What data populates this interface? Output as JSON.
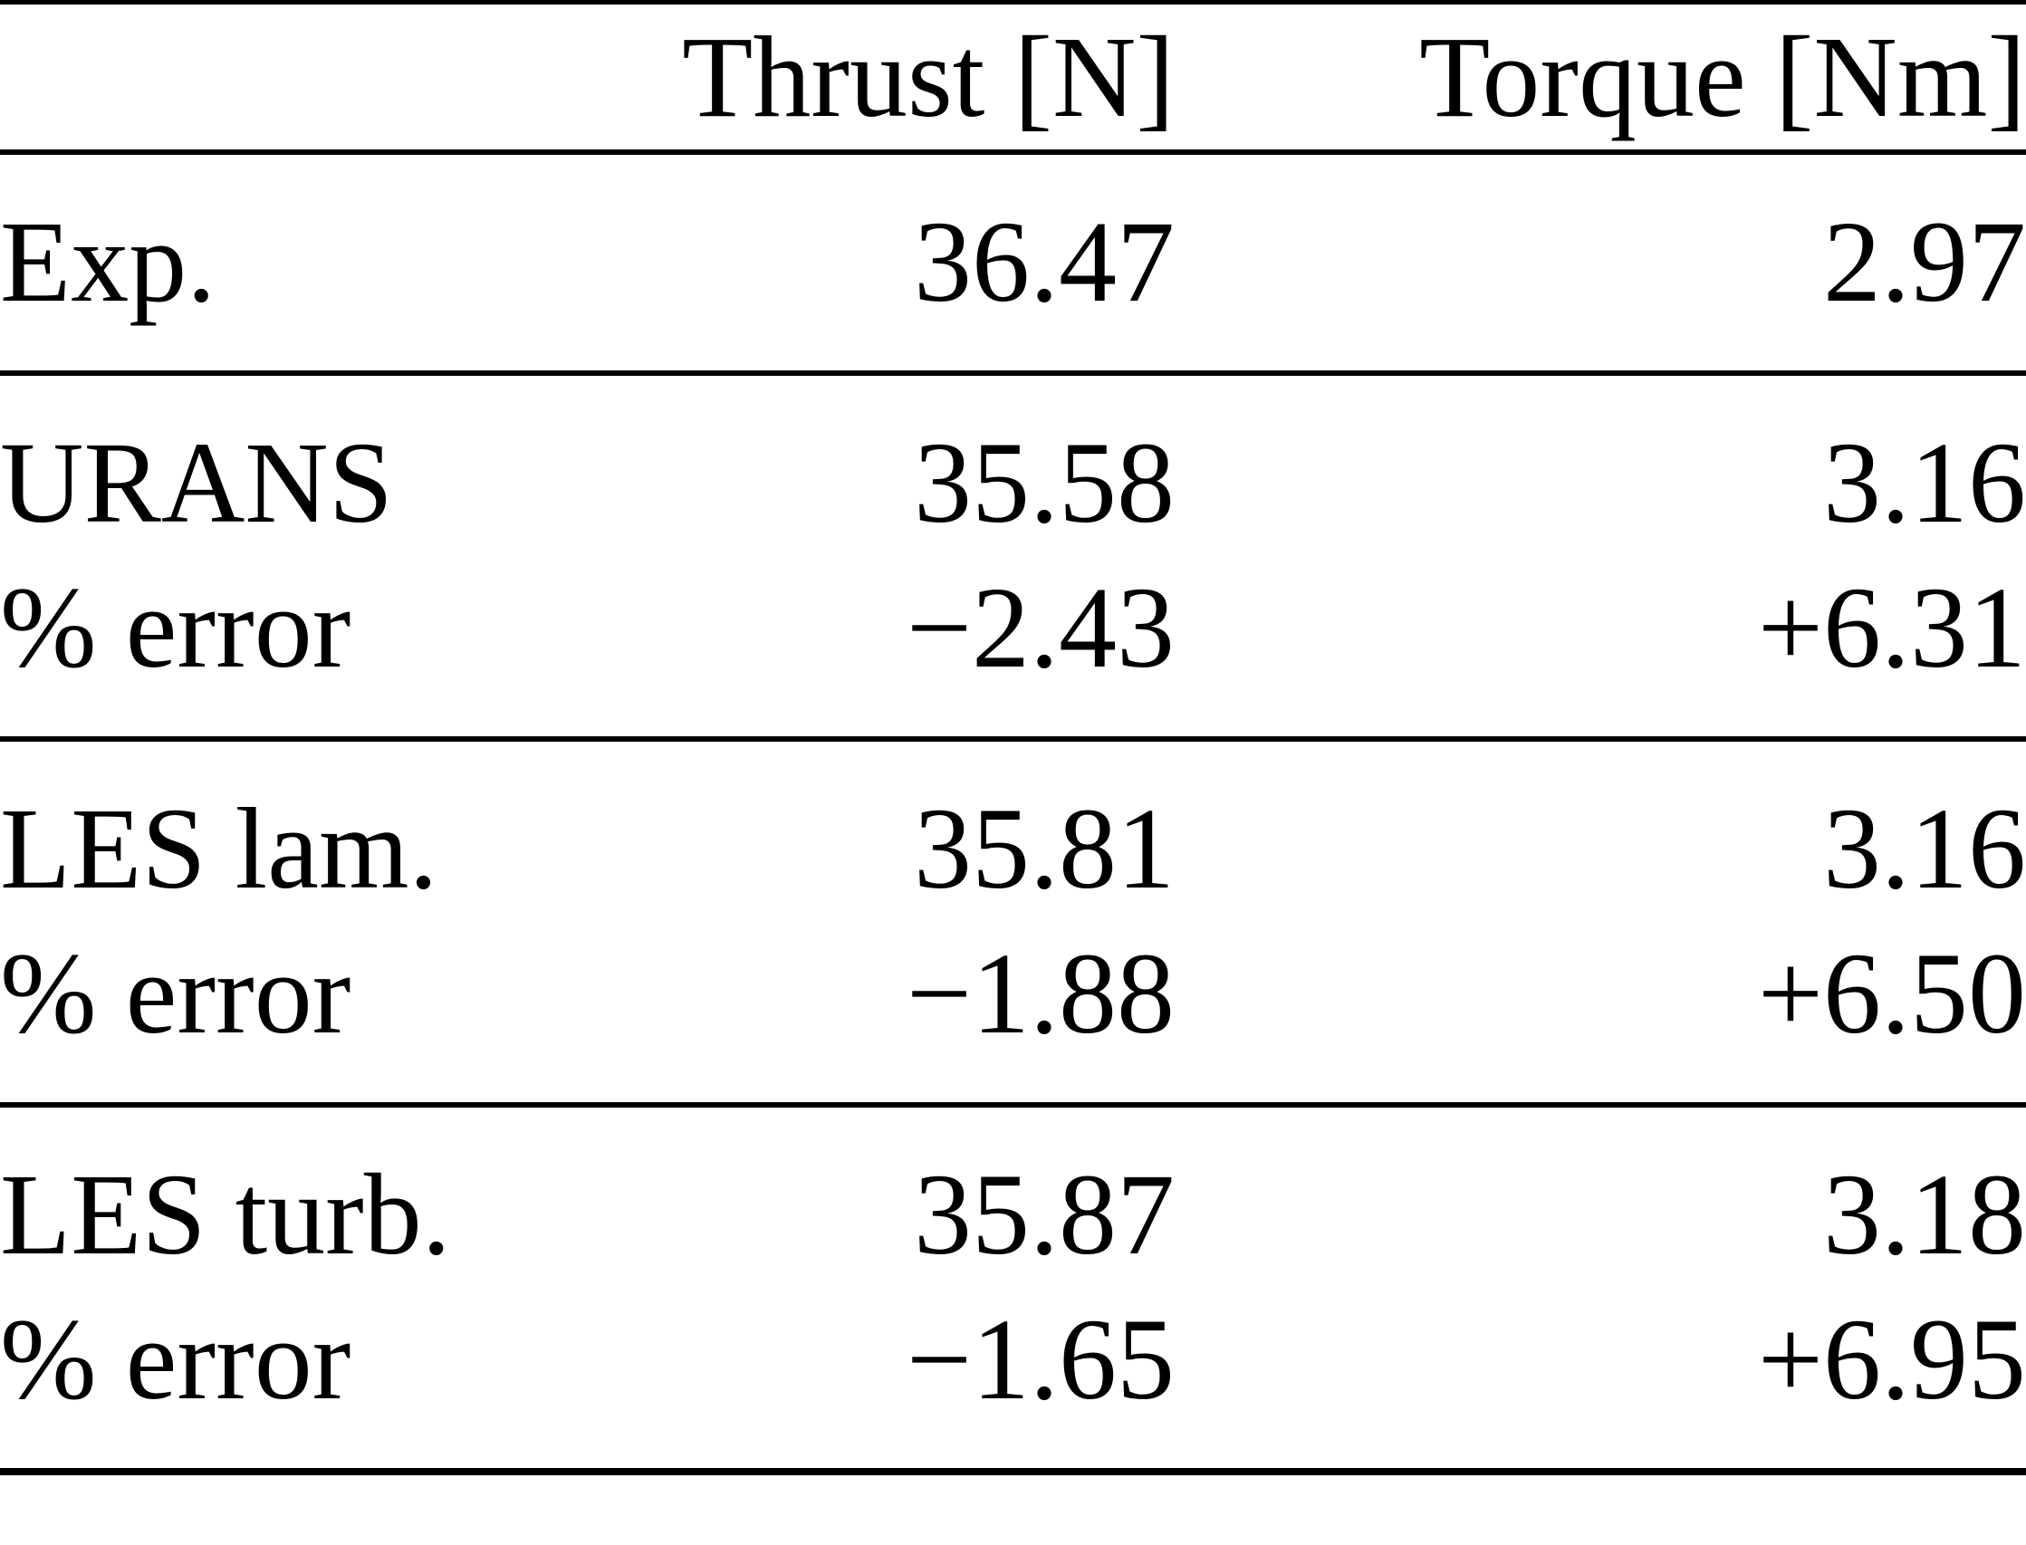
{
  "page": {
    "background_color": "#ffffff",
    "text_color": "#000000",
    "rule_color": "#000000"
  },
  "table": {
    "header": {
      "col1": "",
      "thrust": "Thrust [N]",
      "torque": "Torque [Nm]"
    },
    "sections": [
      {
        "rows": [
          {
            "label": "Exp.",
            "thrust": "36.47",
            "torque": "2.97"
          }
        ]
      },
      {
        "rows": [
          {
            "label": "URANS",
            "thrust": "35.58",
            "torque": "3.16"
          },
          {
            "label": "% error",
            "thrust": "−2.43",
            "torque": "+6.31"
          }
        ]
      },
      {
        "rows": [
          {
            "label": "LES lam.",
            "thrust": "35.81",
            "torque": "3.16"
          },
          {
            "label": "% error",
            "thrust": "−1.88",
            "torque": "+6.50"
          }
        ]
      },
      {
        "rows": [
          {
            "label": "LES turb.",
            "thrust": "35.87",
            "torque": "3.18"
          },
          {
            "label": "% error",
            "thrust": "−1.65",
            "torque": "+6.95"
          }
        ]
      }
    ]
  },
  "chart_data": {
    "type": "table",
    "columns": [
      "",
      "Thrust [N]",
      "Torque [Nm]"
    ],
    "rows": [
      [
        "Exp.",
        36.47,
        2.97
      ],
      [
        "URANS",
        35.58,
        3.16
      ],
      [
        "% error",
        -2.43,
        6.31
      ],
      [
        "LES lam.",
        35.81,
        3.16
      ],
      [
        "% error",
        -1.88,
        6.5
      ],
      [
        "LES turb.",
        35.87,
        3.18
      ],
      [
        "% error",
        -1.65,
        6.95
      ]
    ]
  }
}
